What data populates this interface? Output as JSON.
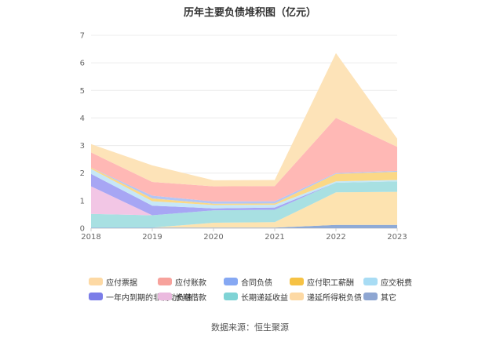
{
  "title": "历年主要负债堆积图（亿元）",
  "source": "数据来源：恒生聚源",
  "chart_data": {
    "type": "area",
    "stacked": true,
    "title": "历年主要负债堆积图（亿元）",
    "x": [
      "2018",
      "2019",
      "2020",
      "2021",
      "2022",
      "2023"
    ],
    "ylim": [
      0,
      7
    ],
    "yticks": [
      "0",
      "1",
      "2",
      "3",
      "4",
      "5",
      "6",
      "7"
    ],
    "grid": true,
    "legend_position": "bottom",
    "series": [
      {
        "name": "其它",
        "color": "#8eaad6",
        "values": [
          0.02,
          0.02,
          0.02,
          0.02,
          0.12,
          0.12
        ]
      },
      {
        "name": "递延所得税负债",
        "color": "#fde3b0",
        "values": [
          0.0,
          0.0,
          0.18,
          0.2,
          1.18,
          1.2
        ]
      },
      {
        "name": "长期递延收益",
        "color": "#a8e0e2",
        "values": [
          0.5,
          0.45,
          0.45,
          0.45,
          0.35,
          0.38
        ]
      },
      {
        "name": "长期借款",
        "color": "#f2c6e5",
        "values": [
          1.0,
          0.0,
          0.0,
          0.0,
          0.0,
          0.0
        ]
      },
      {
        "name": "一年内到期的非流动负债",
        "color": "#a7a6f4",
        "values": [
          0.45,
          0.35,
          0.07,
          0.08,
          0.0,
          0.0
        ]
      },
      {
        "name": "应交税费",
        "color": "#c6e7f7",
        "values": [
          0.18,
          0.16,
          0.12,
          0.1,
          0.05,
          0.05
        ]
      },
      {
        "name": "应付职工薪酬",
        "color": "#fbd886",
        "values": [
          0.05,
          0.1,
          0.05,
          0.05,
          0.27,
          0.3
        ]
      },
      {
        "name": "合同负债",
        "color": "#b3c6f5",
        "values": [
          0.0,
          0.1,
          0.08,
          0.08,
          0.03,
          0.03
        ]
      },
      {
        "name": "应付账款",
        "color": "#ffb8b5",
        "values": [
          0.55,
          0.5,
          0.55,
          0.55,
          2.0,
          0.87
        ]
      },
      {
        "name": "应付票据",
        "color": "#fde3b8",
        "values": [
          0.3,
          0.6,
          0.22,
          0.22,
          2.35,
          0.3
        ]
      }
    ]
  },
  "legend": [
    {
      "name": "应付票据",
      "color": "#fdd9a4"
    },
    {
      "name": "应付账款",
      "color": "#f7a29c"
    },
    {
      "name": "合同负债",
      "color": "#86a8f3"
    },
    {
      "name": "应付职工薪酬",
      "color": "#f6c244"
    },
    {
      "name": "应交税费",
      "color": "#a8dcf4"
    },
    {
      "name": "一年内到期的非流动负债",
      "color": "#7b7de8"
    },
    {
      "name": "长期借款",
      "color": "#ebbadf"
    },
    {
      "name": "长期递延收益",
      "color": "#7fd3d5"
    },
    {
      "name": "递延所得税负债",
      "color": "#fdd9a4"
    },
    {
      "name": "其它",
      "color": "#8ea6d2"
    }
  ]
}
